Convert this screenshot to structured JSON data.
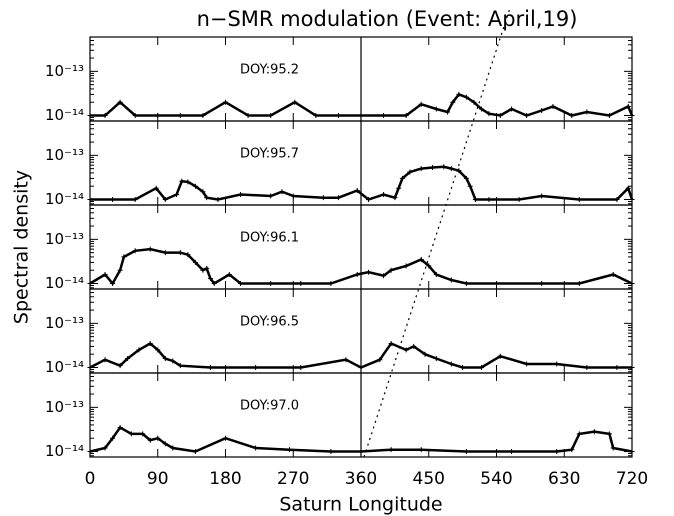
{
  "chart_data": [
    {
      "type": "scatter",
      "title": "n−SMR modulation (Event: April,19)",
      "annotation": "DOY:95.2",
      "x": [
        0,
        20,
        40,
        60,
        90,
        120,
        150,
        180,
        210,
        240,
        272,
        300,
        330,
        360,
        390,
        420,
        440,
        460,
        475,
        482,
        490,
        500,
        510,
        520,
        530,
        545,
        560,
        580,
        600,
        615,
        640,
        660,
        690,
        715,
        720
      ],
      "values": [
        1e-14,
        1e-14,
        2e-14,
        1e-14,
        1e-14,
        1e-14,
        1e-14,
        2e-14,
        1e-14,
        1e-14,
        2e-14,
        1e-14,
        1e-14,
        1e-14,
        1e-14,
        1e-14,
        1.8e-14,
        1.4e-14,
        1.2e-14,
        2e-14,
        3e-14,
        2.6e-14,
        2e-14,
        1.4e-14,
        1.1e-14,
        1e-14,
        1.4e-14,
        1e-14,
        1.3e-14,
        1.6e-14,
        1e-14,
        1.2e-14,
        1e-14,
        1.6e-14,
        1e-14
      ],
      "xlim": [
        0,
        720
      ],
      "ylim": [
        7.5e-15,
        6e-13
      ],
      "log_y": true,
      "yticks": [
        {
          "value": 1e-14,
          "label": "10⁻¹⁴"
        },
        {
          "value": 1e-13,
          "label": "10⁻¹³"
        }
      ]
    },
    {
      "type": "scatter",
      "annotation": "DOY:95.7",
      "x": [
        0,
        30,
        60,
        88,
        100,
        115,
        122,
        130,
        140,
        150,
        155,
        170,
        200,
        240,
        255,
        270,
        310,
        330,
        355,
        370,
        390,
        405,
        410,
        415,
        425,
        440,
        455,
        470,
        480,
        490,
        500,
        505,
        512,
        530,
        570,
        600,
        650,
        700,
        715,
        720
      ],
      "values": [
        1e-14,
        1e-14,
        1e-14,
        1.8e-14,
        1e-14,
        1.3e-14,
        2.6e-14,
        2.5e-14,
        2e-14,
        1.5e-14,
        1.1e-14,
        1e-14,
        1.3e-14,
        1.2e-14,
        1.5e-14,
        1.2e-14,
        1.1e-14,
        1.1e-14,
        1.6e-14,
        1e-14,
        1.3e-14,
        1.1e-14,
        1.8e-14,
        3e-14,
        4.2e-14,
        5e-14,
        5.3e-14,
        5.5e-14,
        5e-14,
        4.5e-14,
        3e-14,
        2e-14,
        1e-14,
        1e-14,
        1e-14,
        1.2e-14,
        1e-14,
        1e-14,
        1.8e-14,
        1e-14
      ],
      "xlim": [
        0,
        720
      ],
      "ylim": [
        7.5e-15,
        6e-13
      ],
      "log_y": true,
      "yticks": [
        {
          "value": 1e-14,
          "label": "10⁻¹⁴"
        },
        {
          "value": 1e-13,
          "label": "10⁻¹³"
        }
      ]
    },
    {
      "type": "scatter",
      "annotation": "DOY:96.1",
      "ylabel": "Spectral density",
      "x": [
        0,
        20,
        30,
        40,
        45,
        60,
        80,
        100,
        120,
        130,
        140,
        150,
        155,
        160,
        165,
        185,
        200,
        240,
        280,
        320,
        355,
        370,
        390,
        400,
        420,
        440,
        450,
        460,
        480,
        500,
        540,
        600,
        650,
        695,
        720
      ],
      "values": [
        1e-14,
        1.6e-14,
        1e-14,
        2e-14,
        4e-14,
        5.5e-14,
        6e-14,
        5e-14,
        5e-14,
        4.5e-14,
        3e-14,
        2e-14,
        2.2e-14,
        1.3e-14,
        1e-14,
        1.6e-14,
        1e-14,
        1e-14,
        1e-14,
        1e-14,
        1.6e-14,
        1.8e-14,
        1.5e-14,
        2e-14,
        2.5e-14,
        3.5e-14,
        2.5e-14,
        1.6e-14,
        1.2e-14,
        1e-14,
        1e-14,
        1e-14,
        1e-14,
        1.6e-14,
        1e-14
      ],
      "xlim": [
        0,
        720
      ],
      "ylim": [
        7.5e-15,
        6e-13
      ],
      "log_y": true,
      "yticks": [
        {
          "value": 1e-14,
          "label": "10⁻¹⁴"
        },
        {
          "value": 1e-13,
          "label": "10⁻¹³"
        }
      ]
    },
    {
      "type": "scatter",
      "annotation": "DOY:96.5",
      "x": [
        0,
        20,
        40,
        50,
        65,
        80,
        90,
        100,
        110,
        120,
        160,
        220,
        280,
        340,
        360,
        385,
        400,
        420,
        430,
        445,
        460,
        480,
        495,
        520,
        545,
        580,
        620,
        660,
        700,
        720
      ],
      "values": [
        1e-14,
        1.5e-14,
        1.1e-14,
        1.6e-14,
        2.5e-14,
        3.5e-14,
        2.5e-14,
        1.6e-14,
        1.4e-14,
        1.1e-14,
        1e-14,
        1e-14,
        1e-14,
        1.5e-14,
        1e-14,
        1.5e-14,
        3.5e-14,
        2.5e-14,
        3e-14,
        2e-14,
        1.6e-14,
        1.2e-14,
        1e-14,
        1e-14,
        1.8e-14,
        1.2e-14,
        1.2e-14,
        1e-14,
        1e-14,
        1e-14
      ],
      "xlim": [
        0,
        720
      ],
      "ylim": [
        7.5e-15,
        6e-13
      ],
      "log_y": true,
      "yticks": [
        {
          "value": 1e-14,
          "label": "10⁻¹⁴"
        },
        {
          "value": 1e-13,
          "label": "10⁻¹³"
        }
      ]
    },
    {
      "type": "scatter",
      "annotation": "DOY:97.0",
      "xlabel": "Saturn Longitude",
      "x": [
        0,
        20,
        30,
        40,
        55,
        70,
        80,
        90,
        100,
        110,
        140,
        180,
        220,
        265,
        320,
        360,
        400,
        440,
        500,
        560,
        620,
        640,
        650,
        670,
        690,
        695,
        720
      ],
      "values": [
        1e-14,
        1.2e-14,
        2e-14,
        3.5e-14,
        2.5e-14,
        2.5e-14,
        1.8e-14,
        2e-14,
        1.5e-14,
        1.2e-14,
        1e-14,
        2e-14,
        1.2e-14,
        1.1e-14,
        1e-14,
        1e-14,
        1.1e-14,
        1.1e-14,
        1e-14,
        1e-14,
        1e-14,
        1.1e-14,
        2.5e-14,
        2.8e-14,
        2.5e-14,
        1.2e-14,
        1e-14
      ],
      "xlim": [
        0,
        720
      ],
      "ylim": [
        7.5e-15,
        6e-13
      ],
      "log_y": true,
      "xticks": [
        0,
        90,
        180,
        270,
        360,
        450,
        540,
        630,
        720
      ],
      "yticks": [
        {
          "value": 1e-14,
          "label": "10⁻¹⁴"
        },
        {
          "value": 1e-13,
          "label": "10⁻¹³"
        }
      ]
    }
  ]
}
